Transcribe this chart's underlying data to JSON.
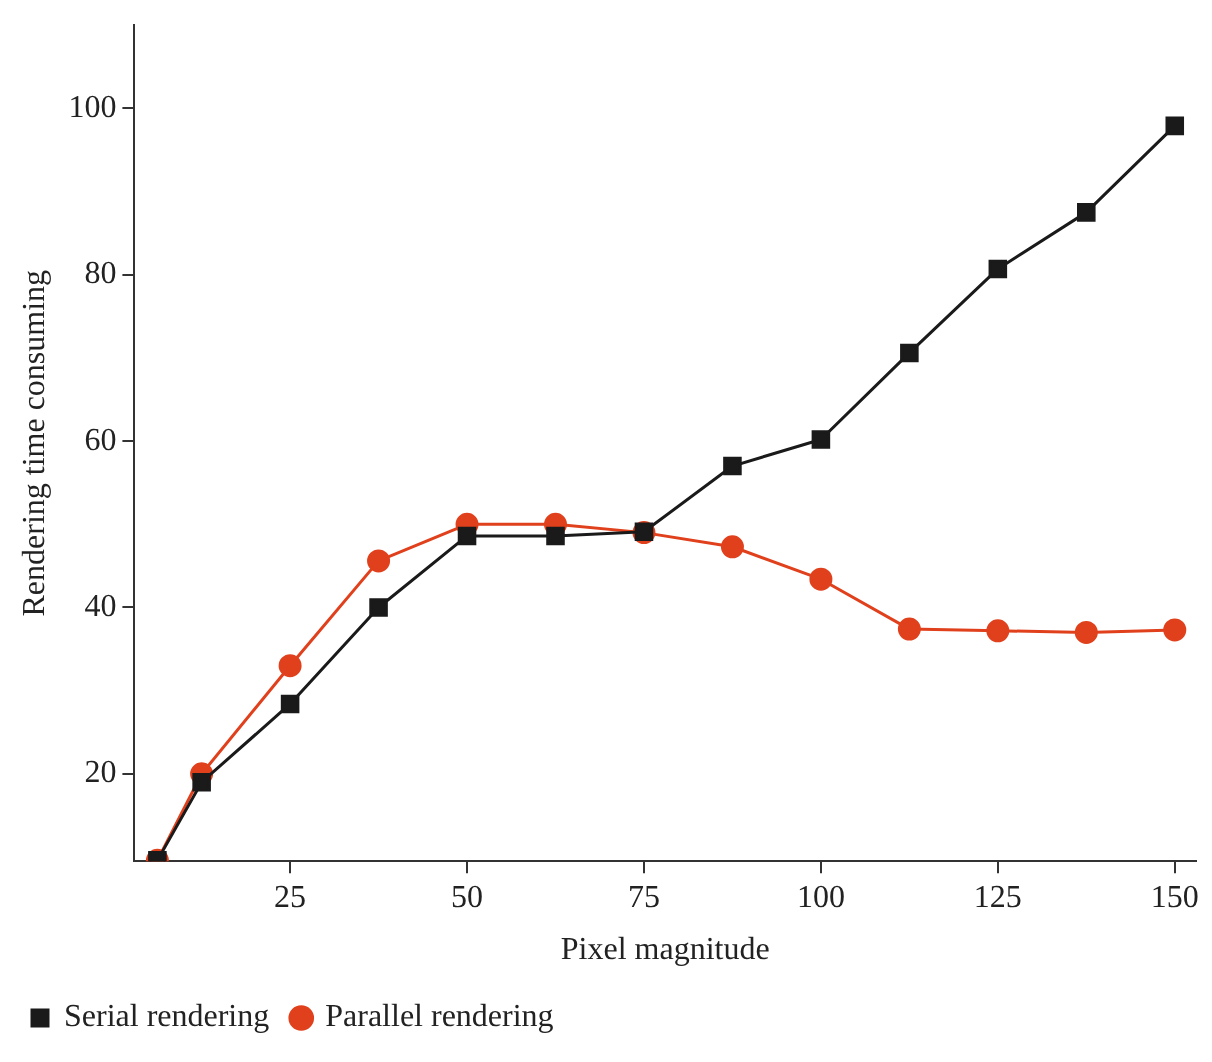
{
  "chart_data": {
    "type": "line",
    "xlabel": "Pixel magnitude",
    "ylabel": "Rendering time consuming",
    "x": [
      6.25,
      12.5,
      25,
      37.5,
      50,
      62.5,
      75,
      87.5,
      100,
      112.5,
      125,
      137.5,
      150
    ],
    "series": [
      {
        "name": "Serial rendering",
        "color": "#1a1a1a",
        "marker": "square",
        "values": [
          9.6,
          19,
          28.4,
          40,
          48.6,
          48.6,
          49.1,
          57,
          60.2,
          70.6,
          80.7,
          87.5,
          97.9
        ]
      },
      {
        "name": "Parallel rendering",
        "color": "#e0401c",
        "marker": "circle",
        "values": [
          9.6,
          20,
          33,
          45.6,
          50,
          50,
          49,
          47.3,
          43.4,
          37.4,
          37.2,
          37,
          37.3
        ]
      }
    ],
    "xlim": [
      3,
      153
    ],
    "xticks": [
      25,
      50,
      75,
      100,
      125,
      150
    ],
    "ylim": [
      9.5,
      110
    ],
    "yticks": [
      20,
      40,
      60,
      80,
      100
    ],
    "grid": false,
    "legend": "bottom left",
    "line_style": "solid"
  }
}
